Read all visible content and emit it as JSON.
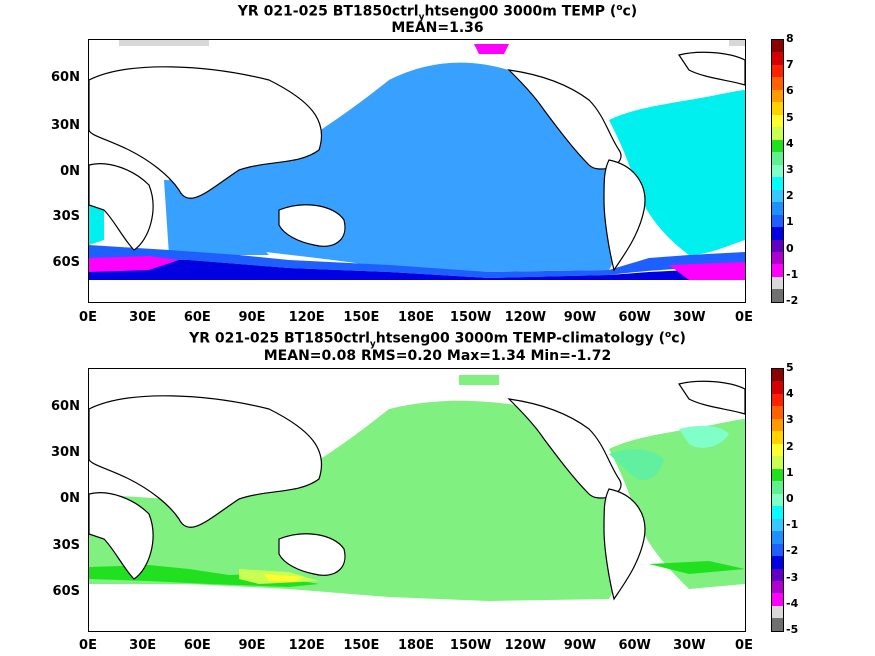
{
  "maps": [
    {
      "title_pre": "YR 021-025 BT1850ctrl",
      "title_sub": "y",
      "title_mid": "htseng00 3000m TEMP (",
      "title_sup": "o",
      "title_post": "c)",
      "stats": "MEAN=1.36",
      "lat_labels": [
        "60N",
        "30N",
        "0N",
        "30S",
        "60S"
      ],
      "lon_labels": [
        "0E",
        "30E",
        "60E",
        "90E",
        "120E",
        "150E",
        "180E",
        "150W",
        "120W",
        "90W",
        "60W",
        "30W",
        "0E"
      ],
      "colorbar": {
        "labels": [
          "8",
          "7",
          "6",
          "5",
          "4",
          "3",
          "2",
          "1",
          "0",
          "-1",
          "-2"
        ],
        "colors": [
          "#8b0000",
          "#d20000",
          "#ff2000",
          "#ff6000",
          "#ff9a00",
          "#ffd200",
          "#ffff30",
          "#c8ff50",
          "#20e020",
          "#60f090",
          "#80ffc8",
          "#00ffff",
          "#38c8ff",
          "#1e90ff",
          "#1e60ff",
          "#0000e0",
          "#6000c0",
          "#b000d0",
          "#ff00ff",
          "#d8d8d8",
          "#707070"
        ]
      }
    },
    {
      "title_pre": "YR 021-025 BT1850ctrl",
      "title_sub": "y",
      "title_mid": "htseng00 3000m TEMP-climatology (",
      "title_sup": "o",
      "title_post": "c)",
      "stats": "MEAN=0.08   RMS=0.20   Max=1.34   Min=-1.72",
      "lat_labels": [
        "60N",
        "30N",
        "0N",
        "30S",
        "60S"
      ],
      "lon_labels": [
        "0E",
        "30E",
        "60E",
        "90E",
        "120E",
        "150E",
        "180E",
        "150W",
        "120W",
        "90W",
        "60W",
        "30W",
        "0E"
      ],
      "colorbar": {
        "labels": [
          "5",
          "4",
          "3",
          "2",
          "1",
          "0",
          "-1",
          "-2",
          "-3",
          "-4",
          "-5"
        ],
        "colors": [
          "#8b0000",
          "#d20000",
          "#ff2000",
          "#ff6000",
          "#ff9a00",
          "#ffd200",
          "#ffff30",
          "#c8ff50",
          "#20e020",
          "#60f090",
          "#80ffc8",
          "#00ffff",
          "#38c8ff",
          "#1e90ff",
          "#1e60ff",
          "#0000e0",
          "#6000c0",
          "#b000d0",
          "#ff00ff",
          "#d8d8d8",
          "#707070"
        ]
      }
    }
  ]
}
